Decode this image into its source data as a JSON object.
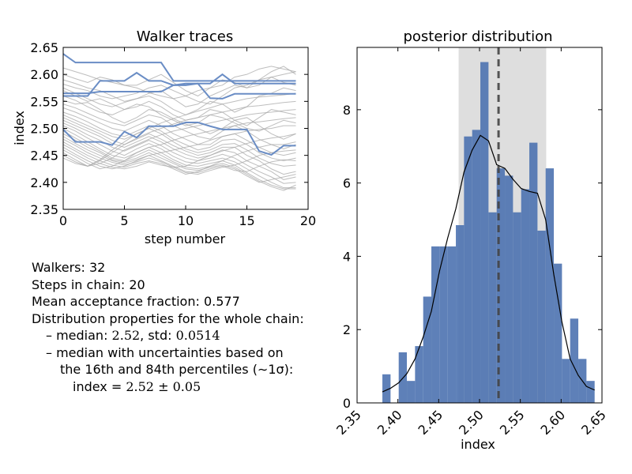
{
  "chart_data": [
    {
      "type": "line",
      "title": "Walker traces",
      "xlabel": "step number",
      "ylabel": "index",
      "xlim": [
        0,
        20
      ],
      "ylim": [
        2.35,
        2.65
      ],
      "xticks": [
        "0",
        "5",
        "10",
        "15",
        "20"
      ],
      "yticks": [
        "2.35",
        "2.40",
        "2.45",
        "2.50",
        "2.55",
        "2.60",
        "2.65"
      ],
      "x": [
        0,
        1,
        2,
        3,
        4,
        5,
        6,
        7,
        8,
        9,
        10,
        11,
        12,
        13,
        14,
        15,
        16,
        17,
        18,
        19
      ],
      "highlight_color": "#6a8dc5",
      "background_color": "#a8a8a8",
      "highlighted_walkers": [
        [
          2.638,
          2.622,
          2.622,
          2.622,
          2.622,
          2.622,
          2.622,
          2.622,
          2.622,
          2.588,
          2.588,
          2.588,
          2.588,
          2.588,
          2.588,
          2.588,
          2.588,
          2.588,
          2.588,
          2.588
        ],
        [
          2.56,
          2.56,
          2.56,
          2.588,
          2.588,
          2.588,
          2.603,
          2.588,
          2.588,
          2.58,
          2.58,
          2.583,
          2.583,
          2.6,
          2.583,
          2.583,
          2.583,
          2.583,
          2.583,
          2.583
        ],
        [
          2.565,
          2.565,
          2.565,
          2.568,
          2.568,
          2.568,
          2.568,
          2.568,
          2.568,
          2.58,
          2.583,
          2.583,
          2.556,
          2.555,
          2.564,
          2.564,
          2.564,
          2.564,
          2.564,
          2.564
        ],
        [
          2.498,
          2.475,
          2.475,
          2.475,
          2.469,
          2.494,
          2.483,
          2.504,
          2.504,
          2.504,
          2.511,
          2.511,
          2.504,
          2.498,
          2.498,
          2.498,
          2.458,
          2.451,
          2.468,
          2.468
        ]
      ],
      "background_walkers": [
        [
          2.612,
          2.605,
          2.598,
          2.59,
          2.585,
          2.58,
          2.575,
          2.566,
          2.56,
          2.555,
          2.56,
          2.57,
          2.575,
          2.58,
          2.595,
          2.6,
          2.61,
          2.615,
          2.61,
          2.605
        ],
        [
          2.6,
          2.592,
          2.585,
          2.595,
          2.59,
          2.58,
          2.58,
          2.59,
          2.6,
          2.585,
          2.57,
          2.56,
          2.575,
          2.59,
          2.585,
          2.575,
          2.58,
          2.595,
          2.6,
          2.605
        ],
        [
          2.59,
          2.583,
          2.575,
          2.57,
          2.56,
          2.55,
          2.555,
          2.565,
          2.57,
          2.555,
          2.54,
          2.545,
          2.56,
          2.57,
          2.58,
          2.575,
          2.59,
          2.605,
          2.615,
          2.6
        ],
        [
          2.582,
          2.575,
          2.57,
          2.56,
          2.555,
          2.56,
          2.565,
          2.575,
          2.58,
          2.57,
          2.56,
          2.55,
          2.545,
          2.56,
          2.575,
          2.58,
          2.59,
          2.595,
          2.585,
          2.58
        ],
        [
          2.575,
          2.565,
          2.555,
          2.545,
          2.54,
          2.548,
          2.555,
          2.56,
          2.55,
          2.535,
          2.525,
          2.535,
          2.55,
          2.545,
          2.53,
          2.54,
          2.56,
          2.565,
          2.575,
          2.57
        ],
        [
          2.57,
          2.56,
          2.55,
          2.555,
          2.545,
          2.535,
          2.54,
          2.55,
          2.54,
          2.525,
          2.515,
          2.52,
          2.535,
          2.53,
          2.515,
          2.505,
          2.52,
          2.535,
          2.53,
          2.525
        ],
        [
          2.56,
          2.552,
          2.54,
          2.53,
          2.525,
          2.535,
          2.545,
          2.54,
          2.525,
          2.515,
          2.505,
          2.51,
          2.525,
          2.52,
          2.51,
          2.5,
          2.495,
          2.505,
          2.515,
          2.51
        ],
        [
          2.552,
          2.545,
          2.548,
          2.535,
          2.52,
          2.51,
          2.52,
          2.535,
          2.53,
          2.518,
          2.508,
          2.5,
          2.49,
          2.5,
          2.515,
          2.52,
          2.505,
          2.49,
          2.48,
          2.49
        ],
        [
          2.545,
          2.538,
          2.528,
          2.518,
          2.51,
          2.505,
          2.515,
          2.525,
          2.52,
          2.505,
          2.495,
          2.485,
          2.48,
          2.495,
          2.505,
          2.495,
          2.48,
          2.47,
          2.462,
          2.47
        ],
        [
          2.538,
          2.53,
          2.52,
          2.51,
          2.5,
          2.495,
          2.505,
          2.515,
          2.505,
          2.49,
          2.48,
          2.47,
          2.47,
          2.485,
          2.49,
          2.478,
          2.465,
          2.455,
          2.45,
          2.455
        ],
        [
          2.53,
          2.522,
          2.512,
          2.5,
          2.49,
          2.485,
          2.495,
          2.505,
          2.495,
          2.48,
          2.47,
          2.46,
          2.465,
          2.478,
          2.48,
          2.47,
          2.455,
          2.445,
          2.44,
          2.445
        ],
        [
          2.525,
          2.515,
          2.505,
          2.495,
          2.485,
          2.48,
          2.49,
          2.5,
          2.49,
          2.475,
          2.462,
          2.455,
          2.46,
          2.47,
          2.472,
          2.46,
          2.445,
          2.435,
          2.43,
          2.432
        ],
        [
          2.52,
          2.51,
          2.5,
          2.49,
          2.478,
          2.47,
          2.48,
          2.49,
          2.48,
          2.468,
          2.458,
          2.45,
          2.455,
          2.465,
          2.465,
          2.45,
          2.44,
          2.425,
          2.415,
          2.42
        ],
        [
          2.515,
          2.505,
          2.495,
          2.485,
          2.472,
          2.465,
          2.475,
          2.485,
          2.475,
          2.462,
          2.452,
          2.445,
          2.45,
          2.46,
          2.455,
          2.44,
          2.43,
          2.42,
          2.405,
          2.41
        ],
        [
          2.51,
          2.5,
          2.488,
          2.478,
          2.465,
          2.458,
          2.468,
          2.478,
          2.468,
          2.455,
          2.445,
          2.44,
          2.445,
          2.452,
          2.445,
          2.432,
          2.42,
          2.41,
          2.398,
          2.4
        ],
        [
          2.505,
          2.495,
          2.482,
          2.47,
          2.458,
          2.45,
          2.462,
          2.472,
          2.462,
          2.448,
          2.438,
          2.435,
          2.44,
          2.445,
          2.438,
          2.425,
          2.412,
          2.4,
          2.39,
          2.39
        ],
        [
          2.5,
          2.488,
          2.475,
          2.462,
          2.45,
          2.445,
          2.455,
          2.465,
          2.455,
          2.442,
          2.432,
          2.43,
          2.435,
          2.44,
          2.432,
          2.418,
          2.405,
          2.395,
          2.388,
          2.388
        ],
        [
          2.495,
          2.482,
          2.47,
          2.458,
          2.445,
          2.44,
          2.45,
          2.46,
          2.45,
          2.438,
          2.428,
          2.425,
          2.43,
          2.435,
          2.428,
          2.415,
          2.402,
          2.392,
          2.385,
          2.395
        ],
        [
          2.49,
          2.478,
          2.465,
          2.455,
          2.442,
          2.438,
          2.445,
          2.455,
          2.445,
          2.435,
          2.425,
          2.422,
          2.428,
          2.432,
          2.425,
          2.412,
          2.4,
          2.405,
          2.41,
          2.415
        ],
        [
          2.485,
          2.472,
          2.46,
          2.45,
          2.44,
          2.435,
          2.442,
          2.45,
          2.44,
          2.43,
          2.42,
          2.418,
          2.425,
          2.43,
          2.422,
          2.42,
          2.43,
          2.438,
          2.442,
          2.44
        ],
        [
          2.48,
          2.468,
          2.455,
          2.445,
          2.437,
          2.432,
          2.438,
          2.445,
          2.438,
          2.428,
          2.418,
          2.415,
          2.422,
          2.428,
          2.432,
          2.44,
          2.45,
          2.455,
          2.458,
          2.46
        ],
        [
          2.475,
          2.462,
          2.45,
          2.44,
          2.432,
          2.428,
          2.435,
          2.44,
          2.435,
          2.425,
          2.415,
          2.42,
          2.43,
          2.44,
          2.45,
          2.458,
          2.465,
          2.47,
          2.47,
          2.475
        ],
        [
          2.47,
          2.458,
          2.445,
          2.435,
          2.428,
          2.425,
          2.43,
          2.438,
          2.432,
          2.428,
          2.43,
          2.44,
          2.45,
          2.458,
          2.465,
          2.472,
          2.478,
          2.482,
          2.485,
          2.49
        ],
        [
          2.465,
          2.452,
          2.44,
          2.43,
          2.425,
          2.43,
          2.44,
          2.45,
          2.455,
          2.46,
          2.465,
          2.47,
          2.478,
          2.485,
          2.49,
          2.495,
          2.498,
          2.5,
          2.505,
          2.505
        ],
        [
          2.46,
          2.448,
          2.435,
          2.425,
          2.43,
          2.44,
          2.455,
          2.465,
          2.47,
          2.478,
          2.485,
          2.49,
          2.495,
          2.5,
          2.505,
          2.51,
          2.512,
          2.515,
          2.518,
          2.52
        ],
        [
          2.455,
          2.442,
          2.43,
          2.435,
          2.445,
          2.46,
          2.47,
          2.48,
          2.488,
          2.495,
          2.5,
          2.505,
          2.51,
          2.515,
          2.52,
          2.525,
          2.528,
          2.53,
          2.533,
          2.535
        ],
        [
          2.45,
          2.438,
          2.43,
          2.44,
          2.455,
          2.47,
          2.482,
          2.492,
          2.5,
          2.508,
          2.515,
          2.52,
          2.525,
          2.53,
          2.535,
          2.54,
          2.542,
          2.545,
          2.548,
          2.55
        ],
        [
          2.445,
          2.435,
          2.43,
          2.442,
          2.46,
          2.475,
          2.49,
          2.5,
          2.51,
          2.518,
          2.525,
          2.532,
          2.538,
          2.545,
          2.55,
          2.555,
          2.558,
          2.56,
          2.562,
          2.565
        ]
      ]
    },
    {
      "type": "bar",
      "title": "posterior distribution",
      "xlabel": "index",
      "ylabel": "",
      "xlim": [
        2.35,
        2.65
      ],
      "ylim": [
        0,
        9.7
      ],
      "xticks": [
        "2.35",
        "2.40",
        "2.45",
        "2.50",
        "2.55",
        "2.60",
        "2.65"
      ],
      "yticks": [
        "0",
        "2",
        "4",
        "6",
        "8"
      ],
      "bar_color": "#4c72b0",
      "band_color": "#c8c8c8",
      "band_range": [
        2.4744,
        2.5817
      ],
      "median": 2.5233,
      "bins": [
        {
          "left": 2.381,
          "right": 2.391,
          "count": 0.78
        },
        {
          "left": 2.391,
          "right": 2.401,
          "count": 0.0
        },
        {
          "left": 2.401,
          "right": 2.411,
          "count": 1.38
        },
        {
          "left": 2.411,
          "right": 2.421,
          "count": 0.6
        },
        {
          "left": 2.421,
          "right": 2.431,
          "count": 1.55
        },
        {
          "left": 2.431,
          "right": 2.441,
          "count": 2.9
        },
        {
          "left": 2.441,
          "right": 2.451,
          "count": 4.27
        },
        {
          "left": 2.451,
          "right": 2.461,
          "count": 4.27
        },
        {
          "left": 2.461,
          "right": 2.471,
          "count": 4.27
        },
        {
          "left": 2.471,
          "right": 2.481,
          "count": 4.85
        },
        {
          "left": 2.481,
          "right": 2.491,
          "count": 7.27
        },
        {
          "left": 2.491,
          "right": 2.501,
          "count": 7.45
        },
        {
          "left": 2.501,
          "right": 2.511,
          "count": 9.3
        },
        {
          "left": 2.511,
          "right": 2.521,
          "count": 5.2
        },
        {
          "left": 2.521,
          "right": 2.531,
          "count": 6.4
        },
        {
          "left": 2.531,
          "right": 2.541,
          "count": 6.2
        },
        {
          "left": 2.541,
          "right": 2.551,
          "count": 5.2
        },
        {
          "left": 2.551,
          "right": 2.561,
          "count": 5.83
        },
        {
          "left": 2.561,
          "right": 2.571,
          "count": 7.1
        },
        {
          "left": 2.571,
          "right": 2.581,
          "count": 4.7
        },
        {
          "left": 2.581,
          "right": 2.591,
          "count": 6.4
        },
        {
          "left": 2.591,
          "right": 2.601,
          "count": 3.8
        },
        {
          "left": 2.601,
          "right": 2.611,
          "count": 1.2
        },
        {
          "left": 2.611,
          "right": 2.621,
          "count": 2.3
        },
        {
          "left": 2.621,
          "right": 2.631,
          "count": 1.2
        },
        {
          "left": 2.631,
          "right": 2.641,
          "count": 0.6
        }
      ],
      "kde": {
        "x": [
          2.381,
          2.391,
          2.401,
          2.411,
          2.421,
          2.431,
          2.441,
          2.451,
          2.461,
          2.471,
          2.481,
          2.491,
          2.501,
          2.511,
          2.521,
          2.531,
          2.541,
          2.551,
          2.561,
          2.571,
          2.581,
          2.591,
          2.601,
          2.611,
          2.621,
          2.631,
          2.641
        ],
        "y": [
          0.3,
          0.4,
          0.55,
          0.8,
          1.2,
          1.8,
          2.5,
          3.6,
          4.5,
          5.3,
          6.3,
          6.9,
          7.3,
          7.15,
          6.5,
          6.4,
          6.1,
          5.85,
          5.77,
          5.72,
          5.0,
          3.5,
          2.2,
          1.2,
          0.75,
          0.45,
          0.35
        ]
      }
    }
  ],
  "summary": {
    "walkers": "Walkers: 32",
    "steps": "Steps in chain: 20",
    "acceptance": "Mean acceptance fraction: 0.577",
    "dist_header": "Distribution properties for the whole chain:",
    "median_prefix": "– median: ",
    "median_value": "2.52",
    "std_label": ", std: ",
    "std_value": "0.0514",
    "uncert_line1": "– median with uncertainties based on",
    "uncert_line2": "the 16th and 84th percentiles (∼1σ):",
    "result_prefix": "index = ",
    "result_value": "2.52 ± 0.05"
  }
}
